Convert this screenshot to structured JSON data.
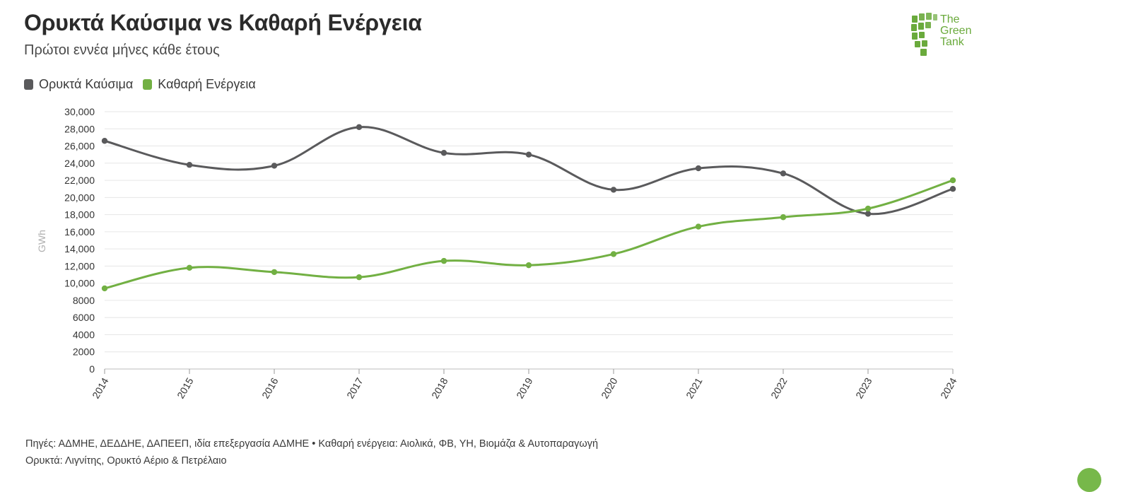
{
  "header": {
    "title": "Ορυκτά Καύσιμα vs Καθαρή Ενέργεια",
    "subtitle": "Πρώτοι εννέα μήνες κάθε έτους"
  },
  "logo": {
    "line1": "The",
    "line2": "Green",
    "line3": "Tank",
    "color": "#6aaa3c"
  },
  "legend": [
    {
      "label": "Ορυκτά Καύσιμα",
      "color": "#5a5a5c"
    },
    {
      "label": "Καθαρή Ενέργεια",
      "color": "#72b043"
    }
  ],
  "chart_data": {
    "type": "line",
    "title": "Ορυκτά Καύσιμα vs Καθαρή Ενέργεια",
    "subtitle": "Πρώτοι εννέα μήνες κάθε έτους",
    "xlabel": "",
    "ylabel": "GWh",
    "x": [
      "2014",
      "2015",
      "2016",
      "2017",
      "2018",
      "2019",
      "2020",
      "2021",
      "2022",
      "2023",
      "2024"
    ],
    "ylim": [
      0,
      30000
    ],
    "yticks": [
      0,
      2000,
      4000,
      6000,
      8000,
      10000,
      12000,
      14000,
      16000,
      18000,
      20000,
      22000,
      24000,
      26000,
      28000,
      30000
    ],
    "ytick_labels": [
      "0",
      "2000",
      "4000",
      "6000",
      "8000",
      "10,000",
      "12,000",
      "14,000",
      "16,000",
      "18,000",
      "20,000",
      "22,000",
      "24,000",
      "26,000",
      "28,000",
      "30,000"
    ],
    "grid": true,
    "legend_position": "top-left",
    "series": [
      {
        "name": "Ορυκτά Καύσιμα",
        "color": "#5a5a5c",
        "values": [
          26600,
          23800,
          23700,
          28200,
          25200,
          25000,
          20900,
          23400,
          22800,
          18100,
          21000
        ]
      },
      {
        "name": "Καθαρή Ενέργεια",
        "color": "#72b043",
        "values": [
          9400,
          11800,
          11300,
          10700,
          12600,
          12100,
          13400,
          16600,
          17700,
          18700,
          22000
        ]
      }
    ]
  },
  "footer": {
    "line1": "Πηγές: ΑΔΜΗΕ, ΔΕΔΔΗΕ, ΔΑΠΕΕΠ, ιδία επεξεργασία ΑΔΜΗΕ • Καθαρή ενέργεια: Αιολικά, ΦΒ, ΥΗ, Βιομάζα & Αυτοπαραγωγή",
    "line2": "Ορυκτά: Λιγνίτης, Ορυκτό Αέριο & Πετρέλαιο"
  }
}
